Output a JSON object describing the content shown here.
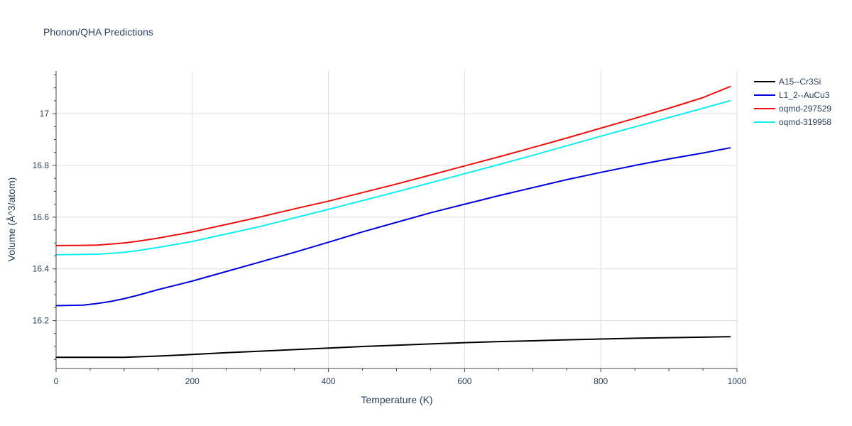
{
  "chart_data": {
    "type": "line",
    "title": "Phonon/QHA Predictions",
    "xlabel": "Temperature (K)",
    "ylabel": "Volume (Å^3/atom)",
    "xlim": [
      0,
      1000
    ],
    "ylim": [
      16.015,
      17.165
    ],
    "xticks": [
      0,
      200,
      400,
      600,
      800,
      1000
    ],
    "xtick_labels": [
      "0",
      "200",
      "400",
      "600",
      "800",
      "1000"
    ],
    "yticks": [
      16.2,
      16.4,
      16.6,
      16.8,
      17.0
    ],
    "ytick_labels": [
      "16.2",
      "16.4",
      "16.6",
      "16.8",
      "17"
    ],
    "grid": true,
    "legend_position": "top-right",
    "series": [
      {
        "name": "A15--Cr3Si",
        "color": "#000000",
        "x": [
          0,
          50,
          100,
          150,
          200,
          250,
          300,
          350,
          400,
          450,
          500,
          550,
          600,
          650,
          700,
          750,
          800,
          850,
          900,
          950,
          990
        ],
        "y": [
          16.058,
          16.058,
          16.058,
          16.063,
          16.069,
          16.076,
          16.082,
          16.088,
          16.094,
          16.1,
          16.105,
          16.11,
          16.115,
          16.119,
          16.122,
          16.126,
          16.129,
          16.132,
          16.134,
          16.136,
          16.138
        ]
      },
      {
        "name": "L1_2--AuCu3",
        "color": "#0000dd",
        "x": [
          0,
          40,
          60,
          80,
          100,
          120,
          150,
          200,
          250,
          300,
          350,
          400,
          450,
          500,
          550,
          600,
          650,
          700,
          750,
          800,
          850,
          900,
          950,
          990
        ],
        "y": [
          16.258,
          16.26,
          16.266,
          16.274,
          16.285,
          16.298,
          16.32,
          16.353,
          16.39,
          16.427,
          16.464,
          16.503,
          16.543,
          16.58,
          16.617,
          16.65,
          16.683,
          16.714,
          16.745,
          16.773,
          16.8,
          16.825,
          16.848,
          16.868
        ]
      },
      {
        "name": "oqmd-297529",
        "color": "#ee1111",
        "x": [
          0,
          40,
          60,
          80,
          100,
          120,
          150,
          200,
          250,
          300,
          350,
          400,
          450,
          500,
          550,
          600,
          650,
          700,
          750,
          800,
          850,
          900,
          950,
          990
        ],
        "y": [
          16.49,
          16.491,
          16.492,
          16.496,
          16.5,
          16.507,
          16.519,
          16.543,
          16.572,
          16.601,
          16.632,
          16.662,
          16.695,
          16.728,
          16.763,
          16.798,
          16.833,
          16.869,
          16.906,
          16.944,
          16.982,
          17.021,
          17.062,
          17.105
        ]
      },
      {
        "name": "oqmd-319958",
        "color": "#11eeee",
        "x": [
          0,
          40,
          60,
          80,
          100,
          120,
          150,
          200,
          250,
          300,
          350,
          400,
          450,
          500,
          550,
          600,
          650,
          700,
          750,
          800,
          850,
          900,
          950,
          990
        ],
        "y": [
          16.455,
          16.456,
          16.457,
          16.46,
          16.464,
          16.471,
          16.483,
          16.506,
          16.535,
          16.564,
          16.597,
          16.63,
          16.664,
          16.698,
          16.733,
          16.768,
          16.803,
          16.839,
          16.876,
          16.913,
          16.949,
          16.985,
          17.021,
          17.05
        ]
      }
    ]
  }
}
